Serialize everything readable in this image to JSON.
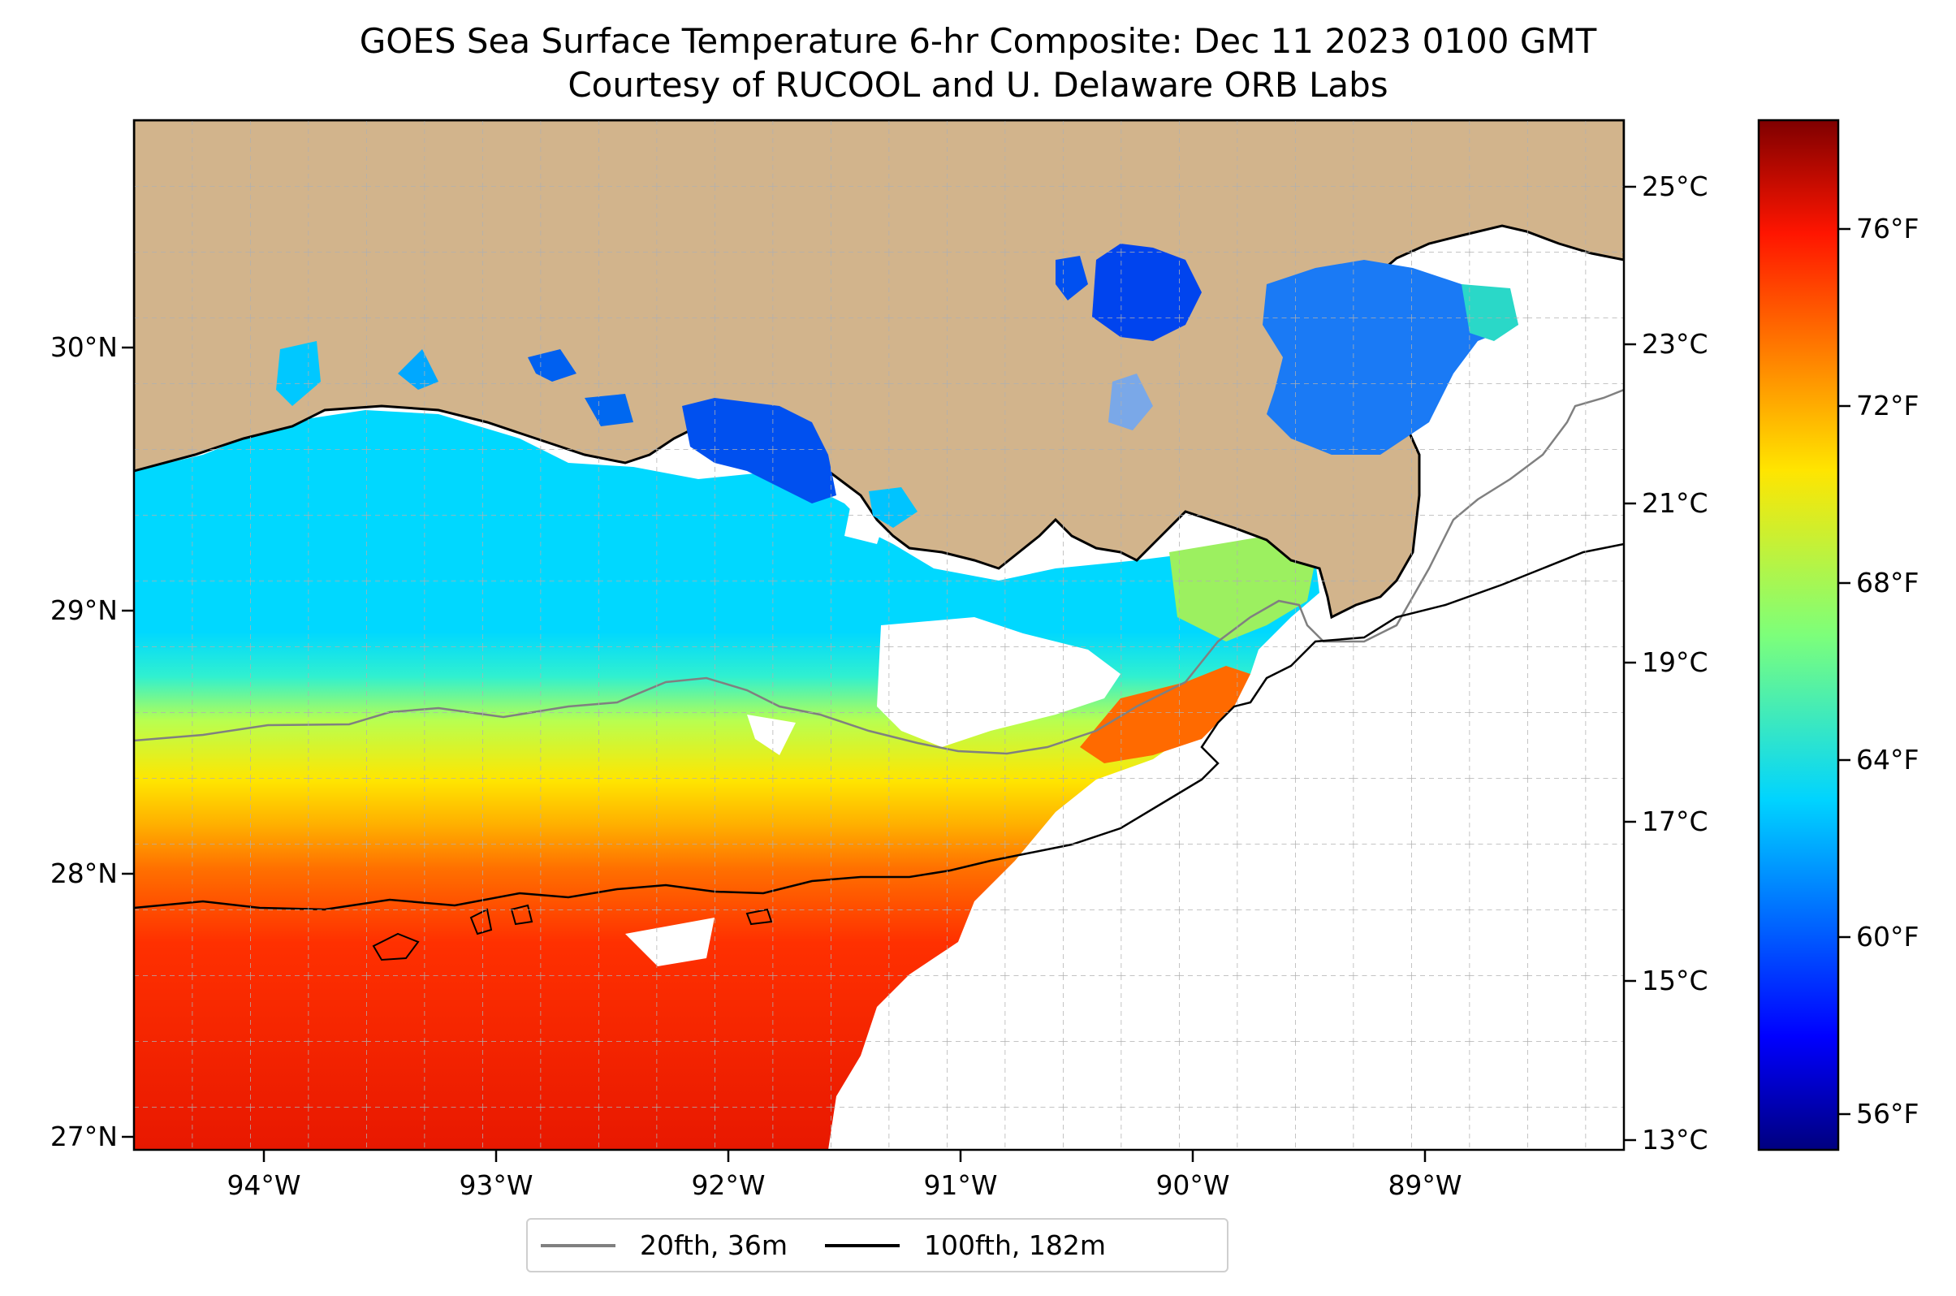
{
  "title": "GOES Sea Surface Temperature 6-hr Composite: Dec 11 2023 0100 GMT",
  "subtitle": "Courtesy of RUCOOL and U. Delaware ORB Labs",
  "map": {
    "lon_range": [
      -94.55,
      -88.2
    ],
    "lat_range": [
      26.95,
      30.85
    ],
    "land_color": "#d2b48c",
    "grid": "dashed gray, every 0.25 degrees",
    "lat_ticks": [
      "30°N",
      "29°N",
      "28°N",
      "27°N"
    ],
    "lon_ticks": [
      "94°W",
      "93°W",
      "92°W",
      "91°W",
      "90°W",
      "89°W"
    ]
  },
  "colorbar": {
    "colormap": "jet",
    "range_f": [
      54.5,
      79
    ],
    "celsius_ticks": [
      "25°C",
      "23°C",
      "21°C",
      "19°C",
      "17°C",
      "15°C",
      "13°C"
    ],
    "fahrenheit_ticks": [
      "76°F",
      "72°F",
      "68°F",
      "64°F",
      "60°F",
      "56°F"
    ]
  },
  "legend": {
    "items": [
      {
        "label": "20fth, 36m",
        "color": "#808080"
      },
      {
        "label": "100fth, 182m",
        "color": "#000000"
      }
    ]
  }
}
